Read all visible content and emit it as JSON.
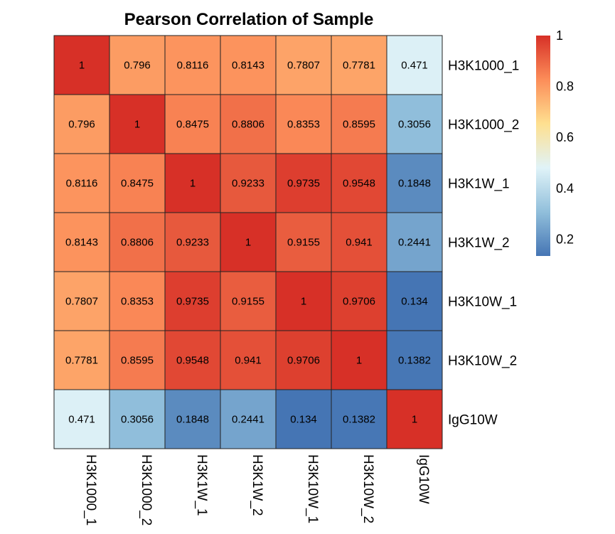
{
  "chart_data": {
    "type": "heatmap",
    "title": "Pearson Correlation of Sample",
    "rows": [
      "H3K1000_1",
      "H3K1000_2",
      "H3K1W_1",
      "H3K1W_2",
      "H3K10W_1",
      "H3K10W_2",
      "IgG10W"
    ],
    "columns": [
      "H3K1000_1",
      "H3K1000_2",
      "H3K1W_1",
      "H3K1W_2",
      "H3K10W_1",
      "H3K10W_2",
      "IgG10W"
    ],
    "values": [
      [
        1,
        0.796,
        0.8116,
        0.8143,
        0.7807,
        0.7781,
        0.471
      ],
      [
        0.796,
        1,
        0.8475,
        0.8806,
        0.8353,
        0.8595,
        0.3056
      ],
      [
        0.8116,
        0.8475,
        1,
        0.9233,
        0.9735,
        0.9548,
        0.1848
      ],
      [
        0.8143,
        0.8806,
        0.9233,
        1,
        0.9155,
        0.941,
        0.2441
      ],
      [
        0.7807,
        0.8353,
        0.9735,
        0.9155,
        1,
        0.9706,
        0.134
      ],
      [
        0.7781,
        0.8595,
        0.9548,
        0.941,
        0.9706,
        1,
        0.1382
      ],
      [
        0.471,
        0.3056,
        0.1848,
        0.2441,
        0.134,
        0.1382,
        1
      ]
    ],
    "labels": [
      [
        "1",
        "0.796",
        "0.8116",
        "0.8143",
        "0.7807",
        "0.7781",
        "0.471"
      ],
      [
        "0.796",
        "1",
        "0.8475",
        "0.8806",
        "0.8353",
        "0.8595",
        "0.3056"
      ],
      [
        "0.8116",
        "0.8475",
        "1",
        "0.9233",
        "0.9735",
        "0.9548",
        "0.1848"
      ],
      [
        "0.8143",
        "0.8806",
        "0.9233",
        "1",
        "0.9155",
        "0.941",
        "0.2441"
      ],
      [
        "0.7807",
        "0.8353",
        "0.9735",
        "0.9155",
        "1",
        "0.9706",
        "0.134"
      ],
      [
        "0.7781",
        "0.8595",
        "0.9548",
        "0.941",
        "0.9706",
        "1",
        "0.1382"
      ],
      [
        "0.471",
        "0.3056",
        "0.1848",
        "0.2441",
        "0.134",
        "0.1382",
        "1"
      ]
    ],
    "colorbar": {
      "min": 0.134,
      "max": 1,
      "ticks": [
        0.2,
        0.4,
        0.6,
        0.8,
        1
      ],
      "tick_labels": [
        "0.2",
        "0.4",
        "0.6",
        "0.8",
        "1"
      ],
      "colors": [
        "#4575b4",
        "#91bfdb",
        "#e0f3f8",
        "#fee090",
        "#fc8d59",
        "#d73027"
      ]
    }
  }
}
